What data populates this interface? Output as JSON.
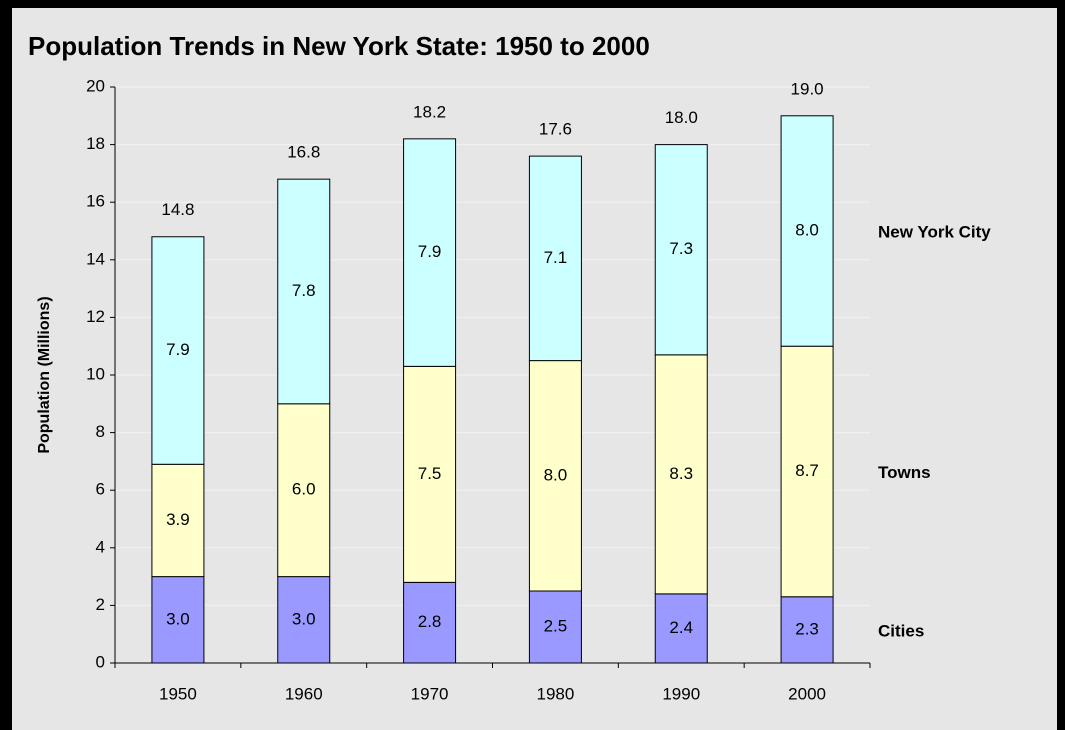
{
  "chart_data": {
    "type": "stacked_bar",
    "title": "Population Trends in New York State: 1950 to 2000",
    "y_label": "Population (Millions)",
    "categories": [
      "1950",
      "1960",
      "1970",
      "1980",
      "1990",
      "2000"
    ],
    "series": [
      {
        "name": "Cities",
        "color": "#9999ff",
        "values": [
          3.0,
          3.0,
          2.8,
          2.5,
          2.4,
          2.3
        ],
        "value_labels": [
          "3.0",
          "3.0",
          "2.8",
          "2.5",
          "2.4",
          "2.3"
        ]
      },
      {
        "name": "Towns",
        "color": "#ffffcc",
        "values": [
          3.9,
          6.0,
          7.5,
          8.0,
          8.3,
          8.7
        ],
        "value_labels": [
          "3.9",
          "6.0",
          "7.5",
          "8.0",
          "8.3",
          "8.7"
        ]
      },
      {
        "name": "New York City",
        "color": "#ccffff",
        "values": [
          7.9,
          7.8,
          7.9,
          7.1,
          7.3,
          8.0
        ],
        "value_labels": [
          "7.9",
          "7.8",
          "7.9",
          "7.1",
          "7.3",
          "8.0"
        ]
      }
    ],
    "totals": [
      14.8,
      16.8,
      18.2,
      17.6,
      18.0,
      19.0
    ],
    "total_labels": [
      "14.8",
      "16.8",
      "18.2",
      "17.6",
      "18.0",
      "19.0"
    ],
    "ylim": [
      0,
      20
    ],
    "yticks": [
      0,
      2,
      4,
      6,
      8,
      10,
      12,
      14,
      16,
      18,
      20
    ],
    "grid": true
  }
}
